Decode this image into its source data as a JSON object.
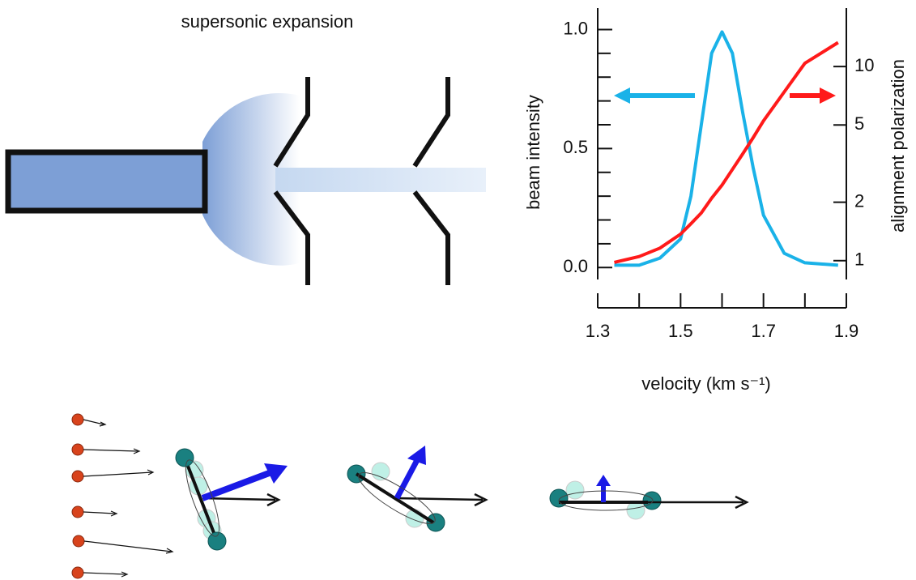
{
  "diagram": {
    "label": "supersonic expansion"
  },
  "chart_data": {
    "type": "line",
    "ylabel": "beam intensity",
    "y2label": "alignment polarization",
    "xlabel": "velocity (km s⁻¹)",
    "x": [
      1.34,
      1.4,
      1.45,
      1.5,
      1.525,
      1.55,
      1.575,
      1.6,
      1.625,
      1.65,
      1.675,
      1.7,
      1.75,
      1.8,
      1.88
    ],
    "series": [
      {
        "color": "#1ab2e8",
        "values": [
          0.01,
          0.01,
          0.04,
          0.12,
          0.3,
          0.6,
          0.9,
          0.99,
          0.9,
          0.65,
          0.42,
          0.22,
          0.06,
          0.02,
          0.01
        ]
      },
      {
        "color": "#ff1a1a",
        "axis": "y2",
        "values": [
          0.98,
          1.05,
          1.16,
          1.37,
          1.55,
          1.76,
          2.1,
          2.45,
          2.95,
          3.55,
          4.3,
          5.25,
          7.4,
          10.4,
          13.3
        ]
      }
    ],
    "xlim": [
      1.3,
      1.9
    ],
    "xticks": [
      1.3,
      1.5,
      1.7,
      1.9
    ],
    "xminorticks": [
      1.4,
      1.6,
      1.8
    ],
    "ylim": [
      -0.05,
      1.09
    ],
    "yticks": [
      {
        "value": 0,
        "label": "0.0"
      },
      {
        "value": 0.5,
        "label": "0.5"
      },
      {
        "value": 1,
        "label": "1.0"
      }
    ],
    "yminorticks": [
      0.1,
      0.2,
      0.3,
      0.4,
      0.6,
      0.7,
      0.8,
      0.9
    ],
    "y2lim": [
      0.8,
      20
    ],
    "y2ticks": [
      1,
      2,
      5,
      10
    ],
    "y2log": true
  }
}
